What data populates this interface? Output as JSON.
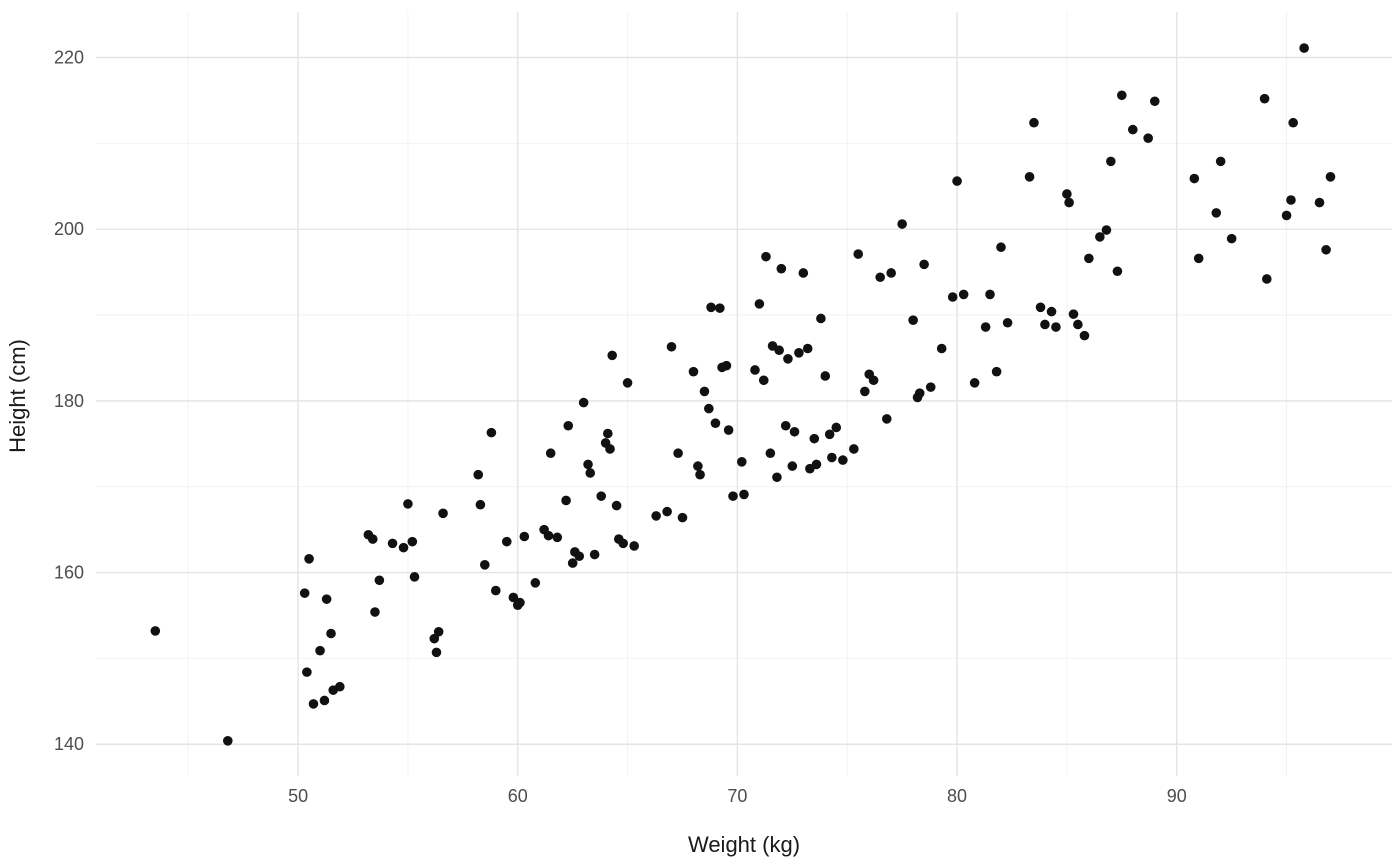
{
  "chart_data": {
    "type": "scatter",
    "title": "",
    "xlabel": "Weight (kg)",
    "ylabel": "Height (cm)",
    "xticks": [
      50,
      60,
      70,
      80,
      90
    ],
    "yticks": [
      140,
      160,
      180,
      200,
      220
    ],
    "xminor": [
      45,
      55,
      65,
      75,
      85,
      95
    ],
    "yminor": [
      150,
      170,
      190,
      210
    ],
    "xlim": [
      40.8,
      99.8
    ],
    "ylim": [
      136.3,
      225.3
    ],
    "grid": "major+minor",
    "legend": "none",
    "point_color": "#111111",
    "grid_major_color": "#e4e4e4",
    "grid_minor_color": "#f2f2f2",
    "tick_label_color": "#4d4d4d",
    "axis_label_color": "#1a1a1a",
    "points": [
      [
        43.5,
        153.2
      ],
      [
        46.8,
        140.4
      ],
      [
        50.3,
        157.6
      ],
      [
        50.5,
        161.6
      ],
      [
        50.4,
        148.4
      ],
      [
        50.7,
        144.7
      ],
      [
        51.0,
        150.9
      ],
      [
        51.2,
        145.1
      ],
      [
        51.3,
        156.9
      ],
      [
        51.5,
        152.9
      ],
      [
        51.6,
        146.3
      ],
      [
        51.9,
        146.7
      ],
      [
        53.2,
        164.4
      ],
      [
        53.4,
        163.9
      ],
      [
        53.5,
        155.4
      ],
      [
        53.7,
        159.1
      ],
      [
        54.3,
        163.4
      ],
      [
        54.8,
        162.9
      ],
      [
        55.0,
        168.0
      ],
      [
        55.2,
        163.6
      ],
      [
        55.3,
        159.5
      ],
      [
        56.2,
        152.3
      ],
      [
        56.3,
        150.7
      ],
      [
        56.4,
        153.1
      ],
      [
        56.6,
        166.9
      ],
      [
        58.2,
        171.4
      ],
      [
        58.3,
        167.9
      ],
      [
        58.5,
        160.9
      ],
      [
        58.8,
        176.3
      ],
      [
        59.0,
        157.9
      ],
      [
        59.5,
        163.6
      ],
      [
        59.8,
        157.1
      ],
      [
        60.0,
        156.2
      ],
      [
        60.1,
        156.5
      ],
      [
        60.3,
        164.2
      ],
      [
        60.8,
        158.8
      ],
      [
        61.2,
        165.0
      ],
      [
        61.4,
        164.3
      ],
      [
        61.5,
        173.9
      ],
      [
        61.8,
        164.1
      ],
      [
        62.2,
        168.4
      ],
      [
        62.3,
        177.1
      ],
      [
        62.5,
        161.1
      ],
      [
        62.6,
        162.4
      ],
      [
        62.8,
        161.9
      ],
      [
        63.0,
        179.8
      ],
      [
        63.2,
        172.6
      ],
      [
        63.3,
        171.6
      ],
      [
        63.5,
        162.1
      ],
      [
        63.8,
        168.9
      ],
      [
        64.0,
        175.1
      ],
      [
        64.1,
        176.2
      ],
      [
        64.2,
        174.4
      ],
      [
        64.3,
        185.3
      ],
      [
        64.5,
        167.8
      ],
      [
        64.6,
        163.9
      ],
      [
        64.8,
        163.4
      ],
      [
        65.0,
        182.1
      ],
      [
        65.3,
        163.1
      ],
      [
        66.3,
        166.6
      ],
      [
        66.8,
        167.1
      ],
      [
        67.0,
        186.3
      ],
      [
        67.3,
        173.9
      ],
      [
        67.5,
        166.4
      ],
      [
        68.0,
        183.4
      ],
      [
        68.2,
        172.4
      ],
      [
        68.3,
        171.4
      ],
      [
        68.5,
        181.1
      ],
      [
        68.7,
        179.1
      ],
      [
        68.8,
        190.9
      ],
      [
        69.0,
        177.4
      ],
      [
        69.2,
        190.8
      ],
      [
        69.3,
        183.9
      ],
      [
        69.5,
        184.1
      ],
      [
        69.6,
        176.6
      ],
      [
        69.8,
        168.9
      ],
      [
        70.2,
        172.9
      ],
      [
        70.3,
        169.1
      ],
      [
        70.8,
        183.6
      ],
      [
        71.0,
        191.3
      ],
      [
        71.2,
        182.4
      ],
      [
        71.3,
        196.8
      ],
      [
        71.5,
        173.9
      ],
      [
        71.6,
        186.4
      ],
      [
        71.8,
        171.1
      ],
      [
        71.9,
        185.9
      ],
      [
        72.0,
        195.4
      ],
      [
        72.2,
        177.1
      ],
      [
        72.3,
        184.9
      ],
      [
        72.5,
        172.4
      ],
      [
        72.6,
        176.4
      ],
      [
        72.8,
        185.6
      ],
      [
        73.0,
        194.9
      ],
      [
        73.2,
        186.1
      ],
      [
        73.3,
        172.1
      ],
      [
        73.5,
        175.6
      ],
      [
        73.6,
        172.6
      ],
      [
        73.8,
        189.6
      ],
      [
        74.0,
        182.9
      ],
      [
        74.2,
        176.1
      ],
      [
        74.3,
        173.4
      ],
      [
        74.5,
        176.9
      ],
      [
        74.8,
        173.1
      ],
      [
        75.3,
        174.4
      ],
      [
        75.5,
        197.1
      ],
      [
        75.8,
        181.1
      ],
      [
        76.0,
        183.1
      ],
      [
        76.2,
        182.4
      ],
      [
        76.5,
        194.4
      ],
      [
        76.8,
        177.9
      ],
      [
        77.0,
        194.9
      ],
      [
        77.5,
        200.6
      ],
      [
        78.0,
        189.4
      ],
      [
        78.2,
        180.4
      ],
      [
        78.3,
        180.9
      ],
      [
        78.5,
        195.9
      ],
      [
        78.8,
        181.6
      ],
      [
        79.3,
        186.1
      ],
      [
        79.8,
        192.1
      ],
      [
        80.0,
        205.6
      ],
      [
        80.3,
        192.4
      ],
      [
        80.8,
        182.1
      ],
      [
        81.3,
        188.6
      ],
      [
        81.5,
        192.4
      ],
      [
        81.8,
        183.4
      ],
      [
        82.0,
        197.9
      ],
      [
        82.3,
        189.1
      ],
      [
        83.3,
        206.1
      ],
      [
        83.5,
        212.4
      ],
      [
        83.8,
        190.9
      ],
      [
        84.0,
        188.9
      ],
      [
        84.3,
        190.4
      ],
      [
        84.5,
        188.6
      ],
      [
        85.0,
        204.1
      ],
      [
        85.1,
        203.1
      ],
      [
        85.3,
        190.1
      ],
      [
        85.5,
        188.9
      ],
      [
        85.8,
        187.6
      ],
      [
        86.0,
        196.6
      ],
      [
        86.5,
        199.1
      ],
      [
        86.8,
        199.9
      ],
      [
        87.0,
        207.9
      ],
      [
        87.3,
        195.1
      ],
      [
        87.5,
        215.6
      ],
      [
        88.0,
        211.6
      ],
      [
        88.7,
        210.6
      ],
      [
        89.0,
        214.9
      ],
      [
        90.8,
        205.9
      ],
      [
        91.0,
        196.6
      ],
      [
        91.8,
        201.9
      ],
      [
        92.0,
        207.9
      ],
      [
        92.5,
        198.9
      ],
      [
        94.0,
        215.2
      ],
      [
        94.1,
        194.2
      ],
      [
        95.0,
        201.6
      ],
      [
        95.2,
        203.4
      ],
      [
        95.3,
        212.4
      ],
      [
        95.8,
        221.1
      ],
      [
        96.5,
        203.1
      ],
      [
        96.8,
        197.6
      ],
      [
        97.0,
        206.1
      ]
    ]
  }
}
